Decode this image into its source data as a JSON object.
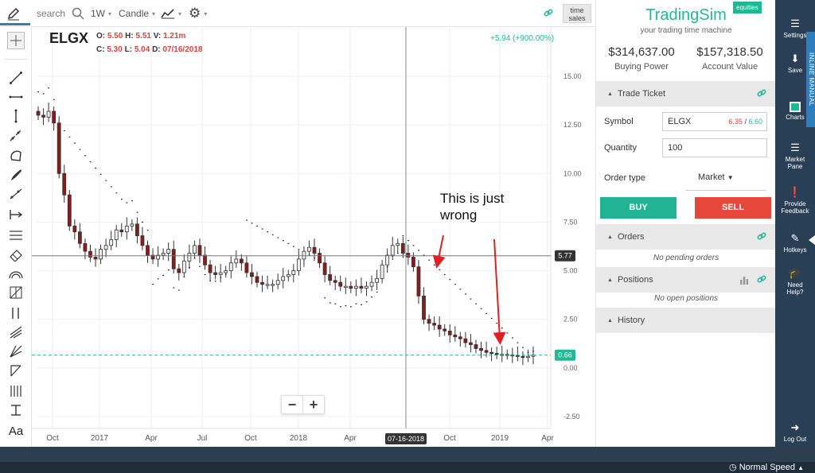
{
  "toolbar": {
    "search_placeholder": "search",
    "interval": "1W",
    "chart_type": "Candle",
    "time_sales_line1": "time",
    "time_sales_line2": "sales"
  },
  "chart": {
    "symbol": "ELGX",
    "o_label": "O: ",
    "o_val": "5.50",
    "h_label": "H: ",
    "h_val": "5.51",
    "v_label": "V: ",
    "v_val": "1.21m",
    "c_label": "C: ",
    "c_val": "5.30",
    "l_label": "L: ",
    "l_val": "5.04",
    "d_label": "D: ",
    "d_val": "07/16/2018",
    "change": "+5.94 (+900.00%)",
    "crosshair_price": "5.77",
    "last_price": "0.66",
    "crosshair_date": "07-16-2018",
    "annotation_line1": "This is just",
    "annotation_line2": "wrong",
    "zoom_out": "−",
    "zoom_in": "+"
  },
  "chart_data": {
    "type": "candlestick",
    "symbol": "ELGX",
    "interval": "1W",
    "y_ticks": [
      "15.00",
      "12.50",
      "10.00",
      "7.50",
      "5.00",
      "2.50",
      "0.00",
      "-2.50"
    ],
    "x_ticks": [
      "Oct",
      "2017",
      "Apr",
      "Jul",
      "Oct",
      "2018",
      "Apr",
      "Jul",
      "Oct",
      "2019",
      "Apr"
    ],
    "ylim": [
      -2.5,
      15
    ],
    "overlay": "parabolic SAR (dotted)",
    "close_approx": [
      13.0,
      12.9,
      13.2,
      12.6,
      10.0,
      8.9,
      7.3,
      7.0,
      6.4,
      6.0,
      5.7,
      5.6,
      6.1,
      6.3,
      6.6,
      7.1,
      7.0,
      7.3,
      7.4,
      6.8,
      6.3,
      5.8,
      5.6,
      5.8,
      5.9,
      6.1,
      5.1,
      4.9,
      5.5,
      5.9,
      6.3,
      5.8,
      5.3,
      4.9,
      4.8,
      4.9,
      5.0,
      5.4,
      5.6,
      5.4,
      4.9,
      4.7,
      4.4,
      4.3,
      4.3,
      4.3,
      4.5,
      4.7,
      4.8,
      5.0,
      5.6,
      6.0,
      6.2,
      5.9,
      5.4,
      4.8,
      4.5,
      4.4,
      4.2,
      4.2,
      4.1,
      4.2,
      4.1,
      4.2,
      4.4,
      4.6,
      5.3,
      5.8,
      6.3,
      6.4,
      5.9,
      5.7,
      5.2,
      3.7,
      2.5,
      2.3,
      2.2,
      2.0,
      1.9,
      1.7,
      1.6,
      1.5,
      1.3,
      1.2,
      1.0,
      0.9,
      0.8,
      0.75,
      0.7,
      0.7,
      0.68,
      0.65,
      0.6,
      0.55,
      0.6,
      0.66
    ],
    "crosshair_price": 5.77,
    "last_price": 0.66
  },
  "panel": {
    "brand": "TradingSim",
    "tagline": "your trading time machine",
    "badge": "equities",
    "buying_power": "$314,637.00",
    "buying_power_label": "Buying Power",
    "account_value": "$157,318.50",
    "account_value_label": "Account Value",
    "trade_ticket": "Trade Ticket",
    "symbol_label": "Symbol",
    "symbol_value": "ELGX",
    "bid": "6.35",
    "bid_ask_sep": " / ",
    "ask": "6.60",
    "quantity_label": "Quantity",
    "quantity_value": "100",
    "order_type_label": "Order type",
    "order_type_value": "Market",
    "buy": "BUY",
    "sell": "SELL",
    "orders": "Orders",
    "no_orders": "No pending orders",
    "positions": "Positions",
    "no_positions": "No open positions",
    "history": "History"
  },
  "sidebar": {
    "settings": "Settings",
    "save": "Save",
    "charts": "Charts",
    "market_pane_1": "Market",
    "market_pane_2": "Pane",
    "feedback_1": "Provide",
    "feedback_2": "Feedback",
    "hotkeys": "Hotkeys",
    "help_1": "Need",
    "help_2": "Help?",
    "logout": "Log Out",
    "inline_manual": "INLINE MANUAL"
  },
  "status": {
    "speed": "Normal Speed"
  },
  "colors": {
    "accent_green": "#22b895",
    "sell_red": "#e6473a",
    "sidebar_dark": "#283f55",
    "candle_down": "#8b1a1a",
    "candle_up": "#f0f0f0"
  }
}
